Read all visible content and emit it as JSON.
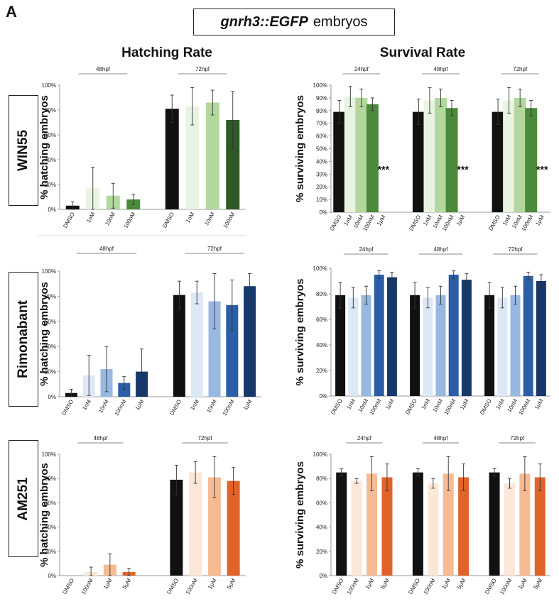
{
  "panel_letter": "A",
  "figure_title_italic": "gnrh3::EGFP",
  "figure_title_rest": "embryos",
  "column_titles": {
    "hatching": "Hatching Rate",
    "survival": "Survival Rate"
  },
  "row_labels": {
    "win55": "WIN55",
    "rimonabant": "Rimonabant",
    "am251": "AM251"
  },
  "colors": {
    "black": "#111111",
    "green": [
      "#e8f4e1",
      "#b3d89e",
      "#4b8a3a",
      "#2e5a25"
    ],
    "blue": [
      "#dce8f6",
      "#97b8e0",
      "#2b5ea6",
      "#17386b"
    ],
    "orange": [
      "#fbe6d8",
      "#f6bb92",
      "#e0642a"
    ]
  },
  "chart_data": [
    {
      "id": "win55-hatching",
      "type": "bar",
      "ylabel": "% hatching embryos",
      "yticks": [
        "0%",
        "20%",
        "40%",
        "60%",
        "80%",
        "100%"
      ],
      "ylim": [
        0,
        100
      ],
      "groups": [
        {
          "label": "48hpf",
          "categories": [
            "DMSO",
            "1nM",
            "10nM",
            "100nM"
          ],
          "values": [
            3,
            17,
            11,
            8
          ],
          "errors": [
            3,
            17,
            10,
            4
          ],
          "colors": [
            "#111111",
            "#e8f4e1",
            "#b3d89e",
            "#4b8a3a"
          ]
        },
        {
          "label": "72hpf",
          "categories": [
            "DMSO",
            "1nM",
            "10nM",
            "100nM"
          ],
          "values": [
            81,
            83,
            86,
            72
          ],
          "errors": [
            11,
            15,
            10,
            23
          ],
          "colors": [
            "#111111",
            "#e8f4e1",
            "#b3d89e",
            "#2e5a25"
          ]
        }
      ]
    },
    {
      "id": "win55-survival",
      "type": "bar",
      "ylabel": "% surviving embryos",
      "yticks": [
        "0%",
        "10%",
        "20%",
        "30%",
        "40%",
        "50%",
        "60%",
        "70%",
        "80%",
        "90%",
        "100%"
      ],
      "ylim": [
        0,
        100
      ],
      "groups": [
        {
          "label": "24hpf",
          "categories": [
            "DMSO",
            "1nM",
            "10nM",
            "100nM",
            "1μM"
          ],
          "values": [
            79,
            91,
            90,
            85,
            0
          ],
          "errors": [
            9,
            8,
            7,
            5,
            0
          ],
          "colors": [
            "#111111",
            "#e8f4e1",
            "#b3d89e",
            "#4b8a3a",
            "#4b8a3a"
          ],
          "annotation": "***"
        },
        {
          "label": "48hpf",
          "categories": [
            "DMSO",
            "1nM",
            "10nM",
            "100nM",
            "1μM"
          ],
          "values": [
            79,
            88,
            90,
            82,
            0
          ],
          "errors": [
            10,
            10,
            7,
            6,
            0
          ],
          "colors": [
            "#111111",
            "#e8f4e1",
            "#b3d89e",
            "#4b8a3a",
            "#4b8a3a"
          ],
          "annotation": "***"
        },
        {
          "label": "72hpf",
          "categories": [
            "DMSO",
            "1nM",
            "10nM",
            "100nM",
            "1μM"
          ],
          "values": [
            79,
            88,
            90,
            82,
            0
          ],
          "errors": [
            10,
            10,
            7,
            6,
            0
          ],
          "colors": [
            "#111111",
            "#e8f4e1",
            "#b3d89e",
            "#4b8a3a",
            "#4b8a3a"
          ],
          "annotation": "***"
        }
      ]
    },
    {
      "id": "rimonabant-hatching",
      "type": "bar",
      "ylabel": "% hatching embryos",
      "yticks": [
        "0%",
        "20%",
        "40%",
        "60%",
        "80%",
        "100%"
      ],
      "ylim": [
        0,
        100
      ],
      "groups": [
        {
          "label": "48hpf",
          "categories": [
            "DMSO",
            "1nM",
            "10nM",
            "100nM",
            "1μM"
          ],
          "values": [
            3,
            17,
            22,
            11,
            20
          ],
          "errors": [
            3,
            16,
            18,
            5,
            18
          ],
          "colors": [
            "#111111",
            "#dce8f6",
            "#97b8e0",
            "#2b5ea6",
            "#17386b"
          ]
        },
        {
          "label": "72hpf",
          "categories": [
            "DMSO",
            "1nM",
            "10nM",
            "100nM",
            "1μM"
          ],
          "values": [
            81,
            83,
            76,
            73,
            88
          ],
          "errors": [
            11,
            9,
            22,
            20,
            10
          ],
          "colors": [
            "#111111",
            "#dce8f6",
            "#97b8e0",
            "#2b5ea6",
            "#17386b"
          ]
        }
      ]
    },
    {
      "id": "rimonabant-survival",
      "type": "bar",
      "ylabel": "% surviving embryos",
      "yticks": [
        "0%",
        "20%",
        "40%",
        "60%",
        "80%",
        "100%"
      ],
      "ylim": [
        0,
        100
      ],
      "groups": [
        {
          "label": "24hpf",
          "categories": [
            "DMSO",
            "1nM",
            "10nM",
            "100nM",
            "1μM"
          ],
          "values": [
            79,
            77,
            79,
            95,
            93
          ],
          "errors": [
            10,
            8,
            7,
            3,
            4
          ],
          "colors": [
            "#111111",
            "#dce8f6",
            "#97b8e0",
            "#2b5ea6",
            "#17386b"
          ]
        },
        {
          "label": "48hpf",
          "categories": [
            "DMSO",
            "1nM",
            "10nM",
            "100nM",
            "1μM"
          ],
          "values": [
            79,
            77,
            79,
            95,
            91
          ],
          "errors": [
            10,
            8,
            7,
            3,
            5
          ],
          "colors": [
            "#111111",
            "#dce8f6",
            "#97b8e0",
            "#2b5ea6",
            "#17386b"
          ]
        },
        {
          "label": "72hpf",
          "categories": [
            "DMSO",
            "1nM",
            "10nM",
            "100nM",
            "1μM"
          ],
          "values": [
            79,
            77,
            79,
            94,
            90
          ],
          "errors": [
            10,
            8,
            7,
            3,
            5
          ],
          "colors": [
            "#111111",
            "#dce8f6",
            "#97b8e0",
            "#2b5ea6",
            "#17386b"
          ]
        }
      ]
    },
    {
      "id": "am251-hatching",
      "type": "bar",
      "ylabel": "% hatching embryos",
      "yticks": [
        "0%",
        "20%",
        "40%",
        "60%",
        "80%",
        "100%"
      ],
      "ylim": [
        0,
        100
      ],
      "groups": [
        {
          "label": "48hpf",
          "categories": [
            "DMSO",
            "100nM",
            "1μM",
            "5μM"
          ],
          "values": [
            0,
            3,
            9,
            3
          ],
          "errors": [
            0,
            4,
            9,
            3
          ],
          "colors": [
            "#111111",
            "#fbe6d8",
            "#f6bb92",
            "#e0642a"
          ]
        },
        {
          "label": "72hpf",
          "categories": [
            "DMSO",
            "100nM",
            "1μM",
            "5μM"
          ],
          "values": [
            79,
            85,
            81,
            78
          ],
          "errors": [
            12,
            9,
            17,
            11
          ],
          "colors": [
            "#111111",
            "#fbe6d8",
            "#f6bb92",
            "#e0642a"
          ]
        }
      ]
    },
    {
      "id": "am251-survival",
      "type": "bar",
      "ylabel": "% surviving embryos",
      "yticks": [
        "0%",
        "20%",
        "40%",
        "60%",
        "80%",
        "100%"
      ],
      "ylim": [
        0,
        100
      ],
      "groups": [
        {
          "label": "24hpf",
          "categories": [
            "DMSO",
            "100nM",
            "1μM",
            "5μM"
          ],
          "values": [
            85,
            78,
            84,
            81
          ],
          "errors": [
            3,
            2,
            14,
            11
          ],
          "colors": [
            "#111111",
            "#fbe6d8",
            "#f6bb92",
            "#e0642a"
          ]
        },
        {
          "label": "48hpf",
          "categories": [
            "DMSO",
            "100nM",
            "1μM",
            "5μM"
          ],
          "values": [
            85,
            76,
            84,
            81
          ],
          "errors": [
            3,
            4,
            14,
            11
          ],
          "colors": [
            "#111111",
            "#fbe6d8",
            "#f6bb92",
            "#e0642a"
          ]
        },
        {
          "label": "72hpf",
          "categories": [
            "DMSO",
            "100nM",
            "1μM",
            "5μM"
          ],
          "values": [
            85,
            76,
            84,
            81
          ],
          "errors": [
            3,
            4,
            14,
            11
          ],
          "colors": [
            "#111111",
            "#fbe6d8",
            "#f6bb92",
            "#e0642a"
          ]
        }
      ]
    }
  ]
}
